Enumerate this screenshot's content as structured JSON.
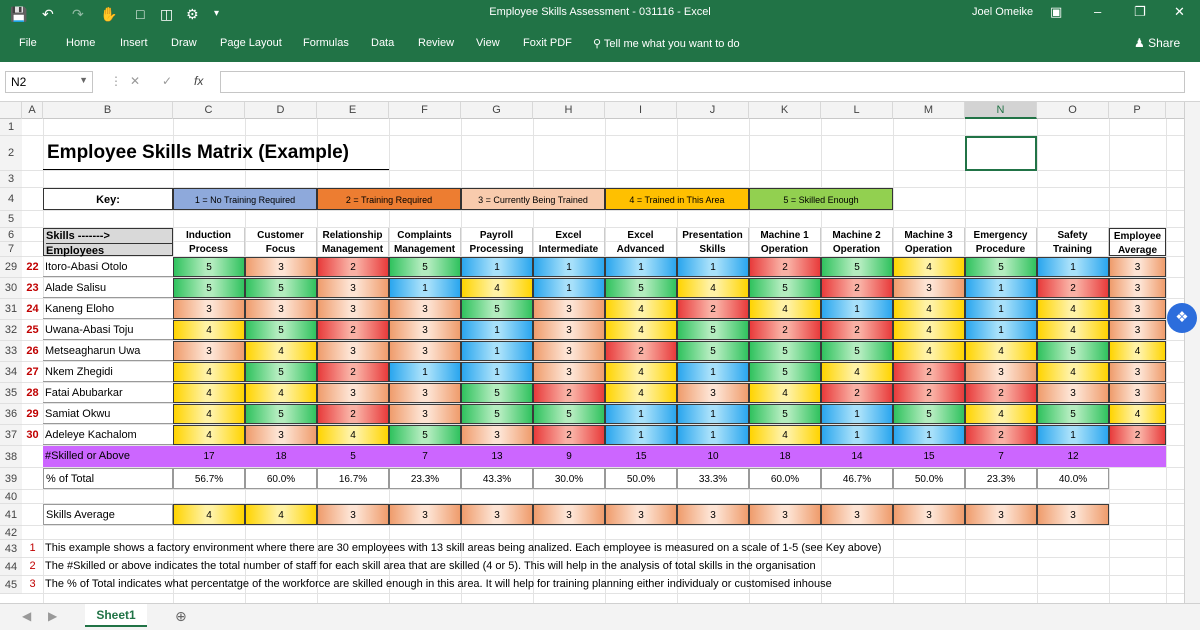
{
  "window": {
    "title": "Employee Skills Assessment - 031116 - Excel",
    "user": "Joel Omeike"
  },
  "ribbon": {
    "tabs": [
      "File",
      "Home",
      "Insert",
      "Draw",
      "Page Layout",
      "Formulas",
      "Data",
      "Review",
      "View",
      "Foxit PDF"
    ],
    "tell_me": "Tell me what you want to do",
    "share": "Share"
  },
  "formula_bar": {
    "name_box": "N2",
    "fx": "fx",
    "formula": ""
  },
  "columns": [
    "A",
    "B",
    "C",
    "D",
    "E",
    "F",
    "G",
    "H",
    "I",
    "J",
    "K",
    "L",
    "M",
    "N",
    "O",
    "P"
  ],
  "selected_column": "N",
  "sheet": {
    "title": "Employee Skills Matrix (Example)",
    "key_label": "Key:",
    "key": [
      {
        "label": "1 = No Training Required",
        "color": "#8ea9db"
      },
      {
        "label": "2 = Training Required",
        "color": "#ed7d31"
      },
      {
        "label": "3 = Currently Being Trained",
        "color": "#f8cbad"
      },
      {
        "label": "4 = Trained in This Area",
        "color": "#ffc000"
      },
      {
        "label": "5 = Skilled Enough",
        "color": "#92d050"
      }
    ],
    "skills_label": "Skills ------->",
    "employees_label": "Employees",
    "skills": [
      [
        "Induction",
        "Process"
      ],
      [
        "Customer",
        "Focus"
      ],
      [
        "Relationship",
        "Management"
      ],
      [
        "Complaints",
        "Management"
      ],
      [
        "Payroll",
        "Processing"
      ],
      [
        "Excel",
        "Intermediate"
      ],
      [
        "Excel",
        "Advanced"
      ],
      [
        "Presentation",
        "Skills"
      ],
      [
        "Machine 1",
        "Operation"
      ],
      [
        "Machine 2",
        "Operation"
      ],
      [
        "Machine 3",
        "Operation"
      ],
      [
        "Emergency",
        "Procedure"
      ],
      [
        "Safety",
        "Training"
      ]
    ],
    "avg_header": [
      "Employee",
      "Average"
    ],
    "employees": [
      {
        "row": "29",
        "num": "22",
        "name": "Itoro-Abasi Otolo",
        "scores": [
          5,
          3,
          2,
          5,
          1,
          1,
          1,
          1,
          2,
          5,
          4,
          5,
          1
        ],
        "avg": "3"
      },
      {
        "row": "30",
        "num": "23",
        "name": "Alade Salisu",
        "scores": [
          5,
          5,
          3,
          1,
          4,
          1,
          5,
          4,
          5,
          2,
          3,
          1,
          2
        ],
        "avg": "3"
      },
      {
        "row": "31",
        "num": "24",
        "name": "Kaneng Eloho",
        "scores": [
          3,
          3,
          3,
          3,
          5,
          3,
          4,
          2,
          4,
          1,
          4,
          1,
          4
        ],
        "avg": "3"
      },
      {
        "row": "32",
        "num": "25",
        "name": "Uwana-Abasi Toju",
        "scores": [
          4,
          5,
          2,
          3,
          1,
          3,
          4,
          5,
          2,
          2,
          4,
          1,
          4
        ],
        "avg": "3"
      },
      {
        "row": "33",
        "num": "26",
        "name": "Metseagharun Uwa",
        "scores": [
          3,
          4,
          3,
          3,
          1,
          3,
          2,
          5,
          5,
          5,
          4,
          4,
          5
        ],
        "avg": "4"
      },
      {
        "row": "34",
        "num": "27",
        "name": "Nkem Zhegidi",
        "scores": [
          4,
          5,
          2,
          1,
          1,
          3,
          4,
          1,
          5,
          4,
          2,
          3,
          4
        ],
        "avg": "3"
      },
      {
        "row": "35",
        "num": "28",
        "name": "Fatai Abubarkar",
        "scores": [
          4,
          4,
          3,
          3,
          5,
          2,
          4,
          3,
          4,
          2,
          2,
          2,
          3
        ],
        "avg": "3"
      },
      {
        "row": "36",
        "num": "29",
        "name": "Samiat Okwu",
        "scores": [
          4,
          5,
          2,
          3,
          5,
          5,
          1,
          1,
          5,
          1,
          5,
          4,
          5
        ],
        "avg": "4"
      },
      {
        "row": "37",
        "num": "30",
        "name": "Adeleye Kachalom",
        "scores": [
          4,
          3,
          4,
          5,
          3,
          2,
          1,
          1,
          4,
          1,
          1,
          2,
          1
        ],
        "avg": "2"
      }
    ],
    "skilled_label": "#Skilled or Above",
    "skilled": [
      "17",
      "18",
      "5",
      "7",
      "13",
      "9",
      "15",
      "10",
      "18",
      "14",
      "15",
      "7",
      "12"
    ],
    "pct_label": "% of Total",
    "pct": [
      "56.7%",
      "60.0%",
      "16.7%",
      "23.3%",
      "43.3%",
      "30.0%",
      "50.0%",
      "33.3%",
      "60.0%",
      "46.7%",
      "50.0%",
      "23.3%",
      "40.0%"
    ],
    "skills_avg_label": "Skills Average",
    "skills_avg": [
      "4",
      "4",
      "3",
      "3",
      "3",
      "3",
      "3",
      "3",
      "3",
      "3",
      "3",
      "3",
      "3"
    ],
    "notes": [
      {
        "row": "43",
        "n": "1",
        "text": "This example shows a factory environment where there are 30 employees with 13 skill areas being analized. Each employee is measured on a scale of 1-5 (see Key above)"
      },
      {
        "row": "44",
        "n": "2",
        "text": "The #Skilled or above indicates the total number of staff for each skill area that are skilled (4 or 5). This will help in the analysis of total skills in the organisation"
      },
      {
        "row": "45",
        "n": "3",
        "text": "The % of Total indicates what percentatge of the workforce are skilled enough in this area. It will help for training planning either individualy or customised inhouse"
      }
    ]
  },
  "sheet_tabs": [
    "Sheet1"
  ],
  "colors": {
    "excel_green": "#217346",
    "skilled_row": "#cc66ff"
  }
}
